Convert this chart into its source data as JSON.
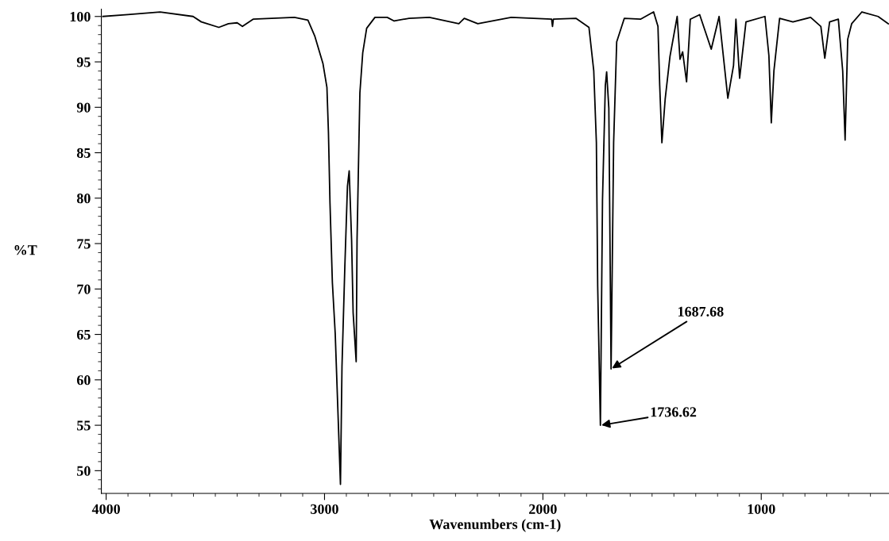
{
  "chart_data": {
    "type": "line",
    "xlabel": "Wavenumbers (cm-1)",
    "ylabel": "%T",
    "xlim": [
      4022,
      415
    ],
    "ylim": [
      47.5,
      100.8
    ],
    "xticks": [
      4000,
      3000,
      2000,
      1000
    ],
    "yticks": [
      50,
      55,
      60,
      65,
      70,
      75,
      80,
      85,
      90,
      95,
      100
    ],
    "grid": false,
    "legend": false,
    "marker": "none",
    "line_style": "solid",
    "series": [
      {
        "color": "#000000",
        "x": [
          4015,
          3900,
          3753,
          3602,
          3564,
          3484,
          3440,
          3400,
          3376,
          3327,
          3138,
          3076,
          3044,
          3007,
          2989,
          2982,
          2975,
          2964,
          2951,
          2927,
          2920,
          2907,
          2895,
          2887,
          2876,
          2869,
          2855,
          2851,
          2844,
          2838,
          2825,
          2807,
          2769,
          2713,
          2681,
          2613,
          2520,
          2385,
          2360,
          2298,
          2145,
          1960,
          1956,
          1952,
          1849,
          1789,
          1767,
          1755,
          1749,
          1736.62,
          1727,
          1714,
          1708,
          1698,
          1687.68,
          1676,
          1662,
          1627,
          1553,
          1493,
          1473,
          1465,
          1455,
          1440,
          1418,
          1385,
          1372,
          1360,
          1342,
          1325,
          1282,
          1229,
          1193,
          1153,
          1127,
          1116,
          1099,
          1070,
          983,
          965,
          954,
          942,
          916,
          855,
          774,
          727,
          709,
          687,
          647,
          627,
          616,
          604,
          586,
          539,
          465,
          418
        ],
        "values": [
          100.0,
          100.2,
          100.5,
          100.0,
          99.4,
          98.8,
          99.2,
          99.3,
          98.9,
          99.7,
          99.9,
          99.6,
          97.8,
          94.8,
          92.2,
          87.2,
          79.5,
          70.7,
          65.1,
          48.5,
          61.5,
          72.4,
          81.3,
          83.0,
          75.4,
          67.4,
          62.0,
          75.4,
          84.2,
          91.6,
          96.0,
          98.7,
          99.9,
          99.9,
          99.5,
          99.8,
          99.9,
          99.2,
          99.8,
          99.2,
          99.9,
          99.7,
          98.9,
          99.7,
          99.8,
          98.8,
          94.0,
          86.1,
          70.3,
          55.0,
          79.8,
          92.4,
          93.9,
          89.9,
          61.2,
          86.1,
          97.2,
          99.8,
          99.7,
          100.5,
          98.9,
          92.4,
          86.1,
          90.9,
          95.6,
          100.0,
          95.3,
          96.1,
          92.8,
          99.7,
          100.2,
          96.4,
          100.0,
          91.0,
          94.6,
          99.7,
          93.2,
          99.4,
          100.0,
          95.7,
          88.3,
          94.0,
          99.8,
          99.4,
          99.9,
          98.9,
          95.4,
          99.4,
          99.7,
          94.0,
          86.4,
          97.5,
          99.2,
          100.5,
          100.0,
          99.2
        ]
      }
    ],
    "annotations": [
      {
        "text": "1736.62",
        "x": 1736.62,
        "y": 55.0
      },
      {
        "text": "1687.68",
        "x": 1687.68,
        "y": 61.2
      }
    ]
  }
}
